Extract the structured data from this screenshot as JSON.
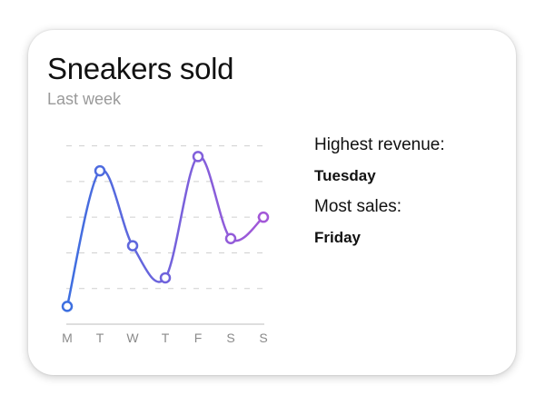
{
  "card": {
    "title": "Sneakers sold",
    "subtitle": "Last week"
  },
  "stats": {
    "highest_revenue_label": "Highest revenue:",
    "highest_revenue_value": "Tuesday",
    "most_sales_label": "Most sales:",
    "most_sales_value": "Friday"
  },
  "colors": {
    "line_start": "#3d6fe0",
    "line_end": "#a357d8",
    "gridline": "#cfcfcf",
    "axis": "#d4d4d4",
    "tick_label": "#8a8a8a"
  },
  "chart_data": {
    "type": "line",
    "title": "",
    "xlabel": "",
    "ylabel": "",
    "categories": [
      "M",
      "T",
      "W",
      "T",
      "F",
      "S",
      "S"
    ],
    "values": [
      0.5,
      4.3,
      2.2,
      1.3,
      4.7,
      2.4,
      3.0
    ],
    "ylim": [
      0,
      5.5
    ],
    "grid": true,
    "smooth": true
  }
}
